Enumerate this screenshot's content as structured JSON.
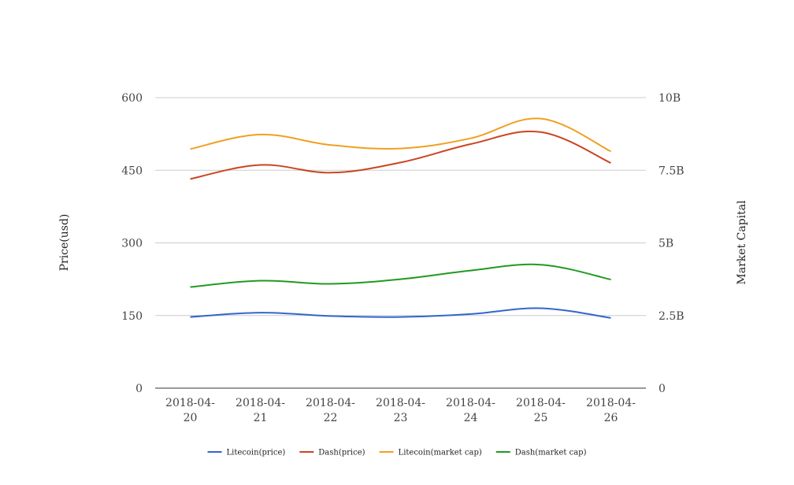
{
  "chart_data": {
    "type": "line",
    "x": [
      "2018-04-20",
      "2018-04-21",
      "2018-04-22",
      "2018-04-23",
      "2018-04-24",
      "2018-04-25",
      "2018-04-26"
    ],
    "ylabel": "Price(usd)",
    "y2label": "Market Capital",
    "ylim": [
      0,
      600
    ],
    "y2lim": [
      0,
      10000000000
    ],
    "y_ticks": [
      "0",
      "150",
      "300",
      "450",
      "600"
    ],
    "y2_ticks": [
      "0",
      "2.5B",
      "5B",
      "7.5B",
      "10B"
    ],
    "grid": true,
    "legend_position": "bottom",
    "series": [
      {
        "name": "Litecoin(price)",
        "axis": "left",
        "color": "#3366cc",
        "values": [
          147,
          156,
          149,
          147,
          153,
          165,
          145
        ]
      },
      {
        "name": "Dash(price)",
        "axis": "left",
        "color": "#cc4422",
        "values": [
          432,
          461,
          445,
          466,
          504,
          529,
          465
        ]
      },
      {
        "name": "Litecoin(market cap)",
        "axis": "right",
        "color": "#f0a020",
        "values": [
          8230000000,
          8730000000,
          8370000000,
          8250000000,
          8600000000,
          9280000000,
          8150000000
        ]
      },
      {
        "name": "Dash(market cap)",
        "axis": "right",
        "color": "#229922",
        "values": [
          3480000000,
          3700000000,
          3590000000,
          3750000000,
          4050000000,
          4250000000,
          3740000000
        ]
      }
    ]
  }
}
